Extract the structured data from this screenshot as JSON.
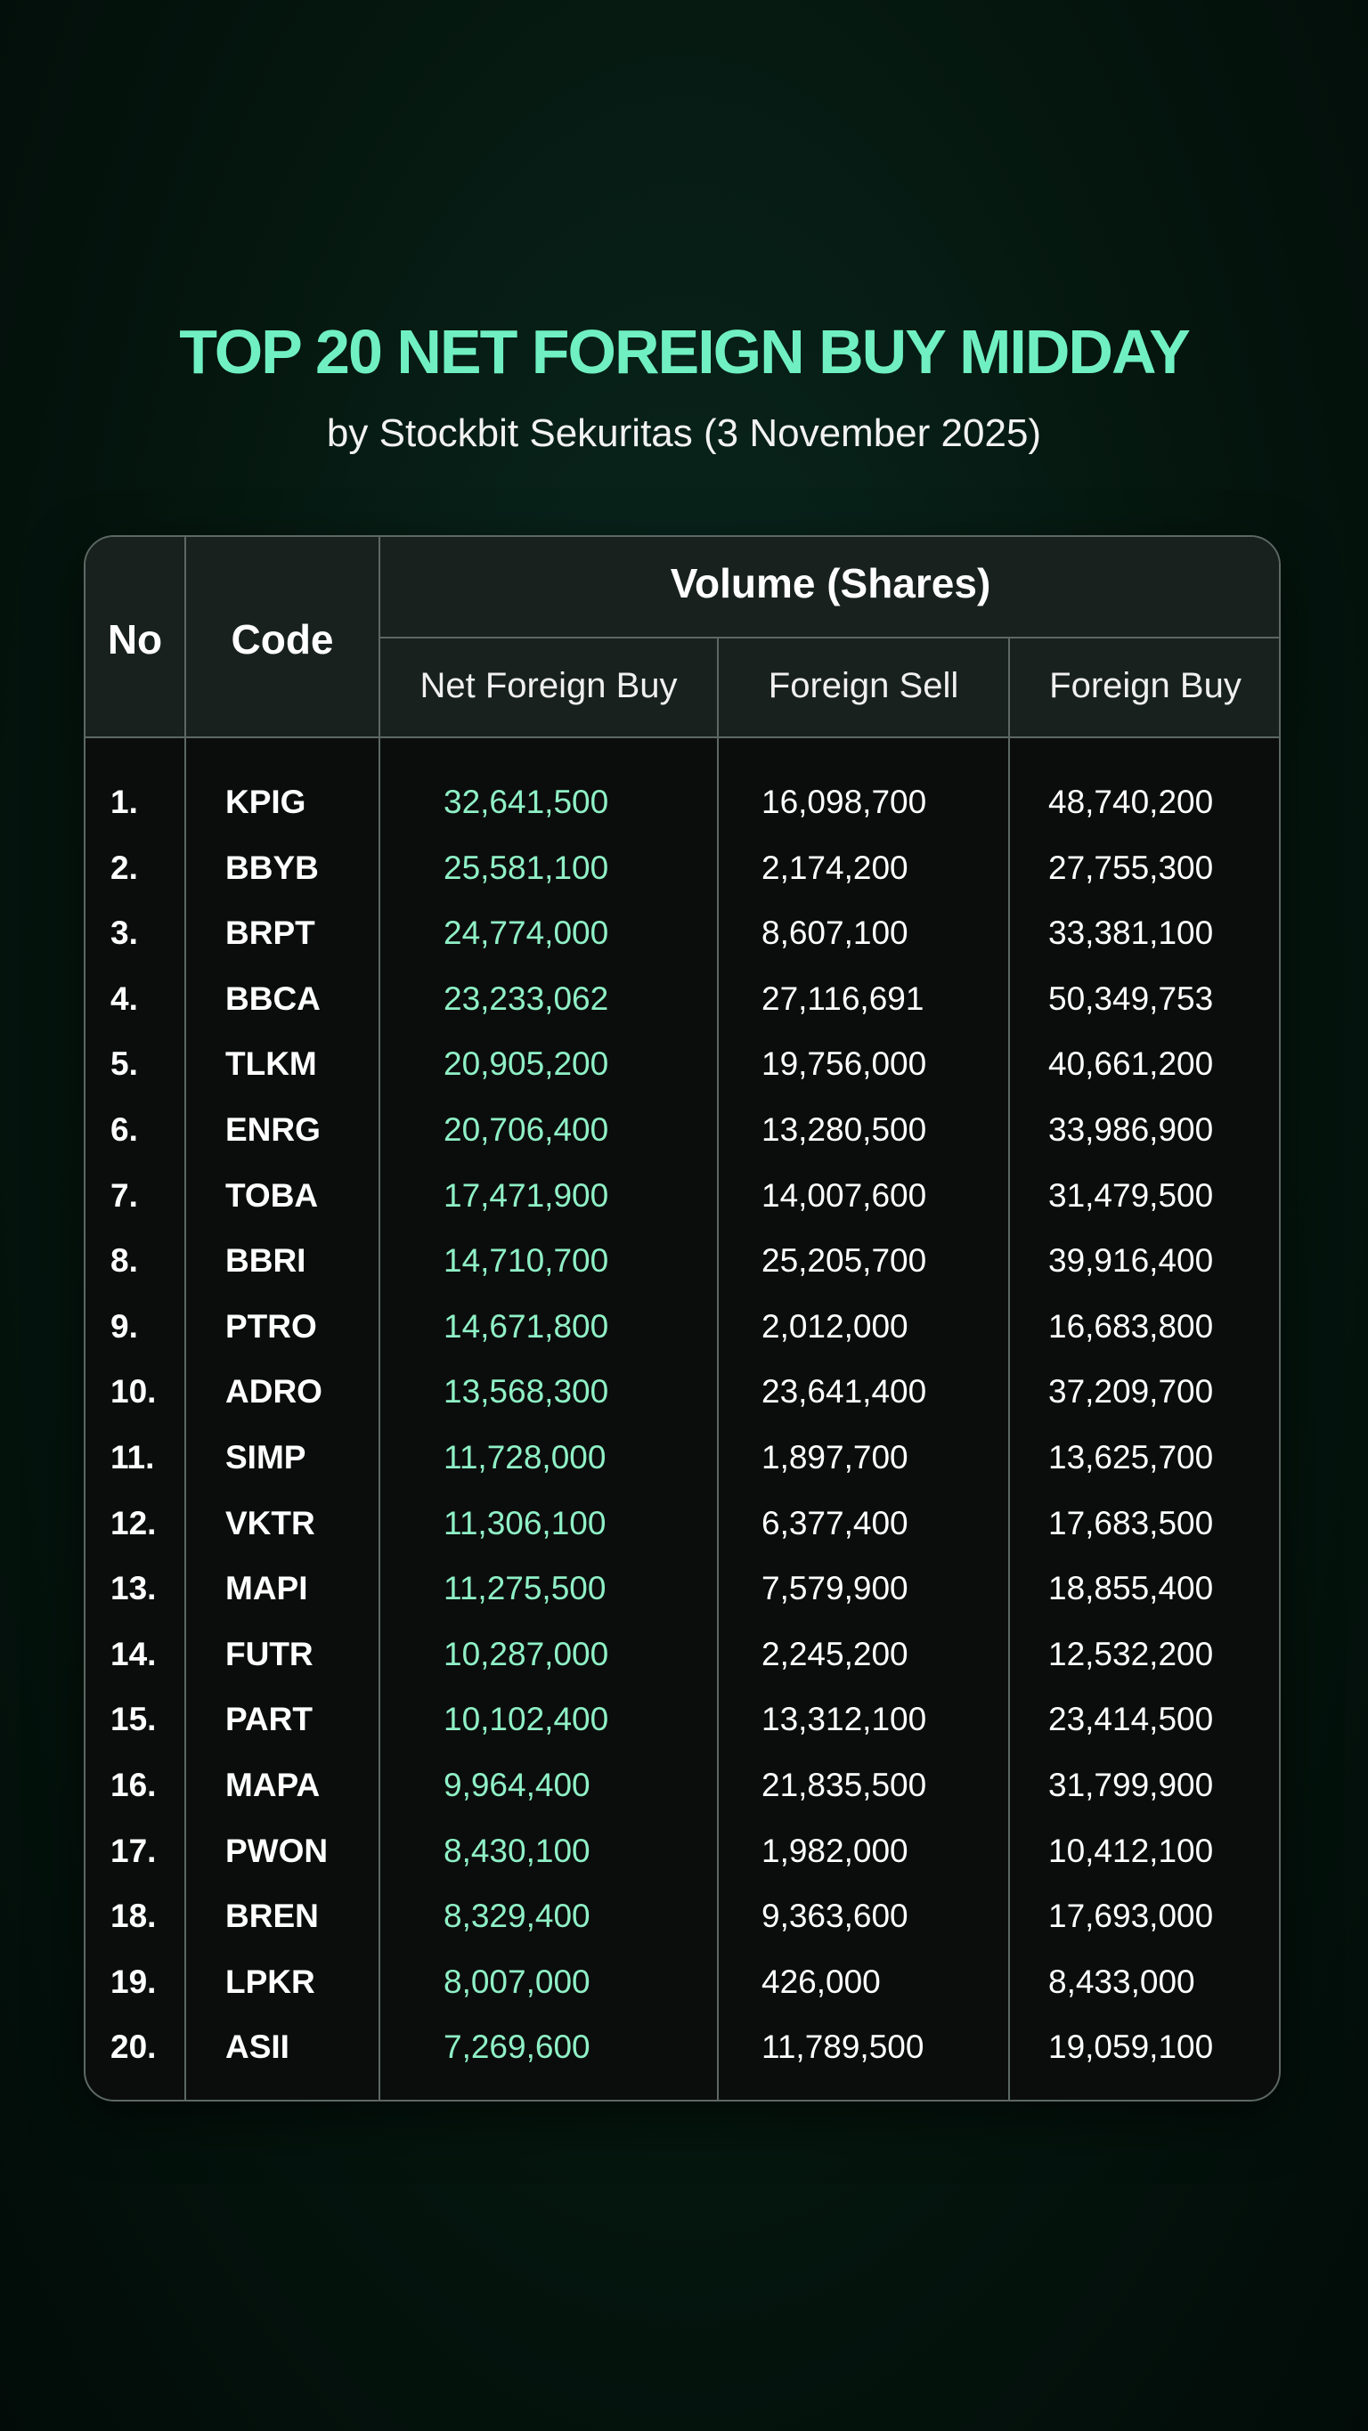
{
  "header": {
    "title": "TOP 20 NET FOREIGN BUY MIDDAY",
    "subtitle": "by Stockbit Sekuritas (3 November 2025)"
  },
  "table": {
    "headers": {
      "no": "No",
      "code": "Code",
      "group": "Volume (Shares)",
      "columns": [
        "Net Foreign Buy",
        "Foreign Sell",
        "Foreign Buy"
      ]
    },
    "rows": [
      [
        "1.",
        "KPIG",
        "32,641,500",
        "16,098,700",
        "48,740,200"
      ],
      [
        "2.",
        "BBYB",
        "25,581,100",
        "2,174,200",
        "27,755,300"
      ],
      [
        "3.",
        "BRPT",
        "24,774,000",
        "8,607,100",
        "33,381,100"
      ],
      [
        "4.",
        "BBCA",
        "23,233,062",
        "27,116,691",
        "50,349,753"
      ],
      [
        "5.",
        "TLKM",
        "20,905,200",
        "19,756,000",
        "40,661,200"
      ],
      [
        "6.",
        "ENRG",
        "20,706,400",
        "13,280,500",
        "33,986,900"
      ],
      [
        "7.",
        "TOBA",
        "17,471,900",
        "14,007,600",
        "31,479,500"
      ],
      [
        "8.",
        "BBRI",
        "14,710,700",
        "25,205,700",
        "39,916,400"
      ],
      [
        "9.",
        "PTRO",
        "14,671,800",
        "2,012,000",
        "16,683,800"
      ],
      [
        "10.",
        "ADRO",
        "13,568,300",
        "23,641,400",
        "37,209,700"
      ],
      [
        "11.",
        "SIMP",
        "11,728,000",
        "1,897,700",
        "13,625,700"
      ],
      [
        "12.",
        "VKTR",
        "11,306,100",
        "6,377,400",
        "17,683,500"
      ],
      [
        "13.",
        "MAPI",
        "11,275,500",
        "7,579,900",
        "18,855,400"
      ],
      [
        "14.",
        "FUTR",
        "10,287,000",
        "2,245,200",
        "12,532,200"
      ],
      [
        "15.",
        "PART",
        "10,102,400",
        "13,312,100",
        "23,414,500"
      ],
      [
        "16.",
        "MAPA",
        "9,964,400",
        "21,835,500",
        "31,799,900"
      ],
      [
        "17.",
        "PWON",
        "8,430,100",
        "1,982,000",
        "10,412,100"
      ],
      [
        "18.",
        "BREN",
        "8,329,400",
        "9,363,600",
        "17,693,000"
      ],
      [
        "19.",
        "LPKR",
        "8,007,000",
        "426,000",
        "8,433,000"
      ],
      [
        "20.",
        "ASII",
        "7,269,600",
        "11,789,500",
        "19,059,100"
      ]
    ]
  }
}
